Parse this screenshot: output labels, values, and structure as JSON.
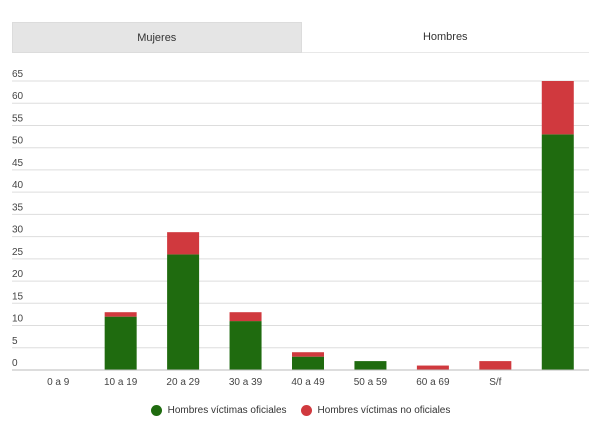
{
  "tabs": [
    {
      "label": "Mujeres",
      "active": false
    },
    {
      "label": "Hombres",
      "active": true
    }
  ],
  "colors": {
    "oficiales": "#1f6b0f",
    "no_oficiales": "#d0393e",
    "gridline": "#dddddd"
  },
  "legend": [
    {
      "label": "Hombres víctimas oficiales",
      "color": "#1f6b0f"
    },
    {
      "label": "Hombres víctimas no oficiales",
      "color": "#d0393e"
    }
  ],
  "chart_data": {
    "type": "bar",
    "stacked": true,
    "categories": [
      "0 a 9",
      "10 a 19",
      "20 a 29",
      "30 a 39",
      "40 a 49",
      "50 a 59",
      "60 a 69",
      "S/f",
      ""
    ],
    "series": [
      {
        "name": "Hombres víctimas oficiales",
        "values": [
          0,
          12,
          26,
          11,
          3,
          2,
          0,
          0,
          53
        ]
      },
      {
        "name": "Hombres víctimas no oficiales",
        "values": [
          0,
          1,
          5,
          2,
          1,
          0,
          1,
          2,
          12
        ]
      }
    ],
    "yticks": [
      0,
      5,
      10,
      15,
      20,
      25,
      30,
      35,
      40,
      45,
      50,
      55,
      60,
      65
    ],
    "ylim": [
      0,
      65
    ],
    "grid": true,
    "legend_position": "bottom"
  }
}
